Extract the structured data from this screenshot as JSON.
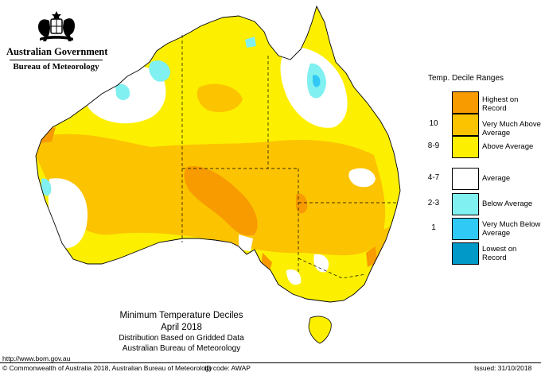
{
  "header": {
    "government": "Australian Government",
    "bureau": "Bureau of Meteorology"
  },
  "legend": {
    "title": "Temp. Decile Ranges",
    "items": [
      {
        "code": "",
        "label": "Highest on Record",
        "color": "#f79b00"
      },
      {
        "code": "10",
        "label": "Very Much Above Average",
        "color": "#fcc300"
      },
      {
        "code": "8-9",
        "label": "Above Average",
        "color": "#fcf000"
      },
      {
        "code": "4-7",
        "label": "Average",
        "color": "#ffffff"
      },
      {
        "code": "2-3",
        "label": "Below Average",
        "color": "#80f0f0"
      },
      {
        "code": "1",
        "label": "Very Much Below Average",
        "color": "#30c8f5"
      },
      {
        "code": "",
        "label": "Lowest on Record",
        "color": "#0099c8"
      }
    ]
  },
  "map_title": {
    "title": "Minimum Temperature Deciles",
    "period": "April 2018",
    "line1": "Distribution Based on Gridded Data",
    "line2": "Australian Bureau of Meteorology"
  },
  "url": "http://www.bom.gov.au",
  "footer": {
    "copyright": "© Commonwealth of Australia 2018, Australian Bureau of Meteorology",
    "id_code": "ID code: AWAP",
    "issued": "Issued: 31/10/2018"
  }
}
